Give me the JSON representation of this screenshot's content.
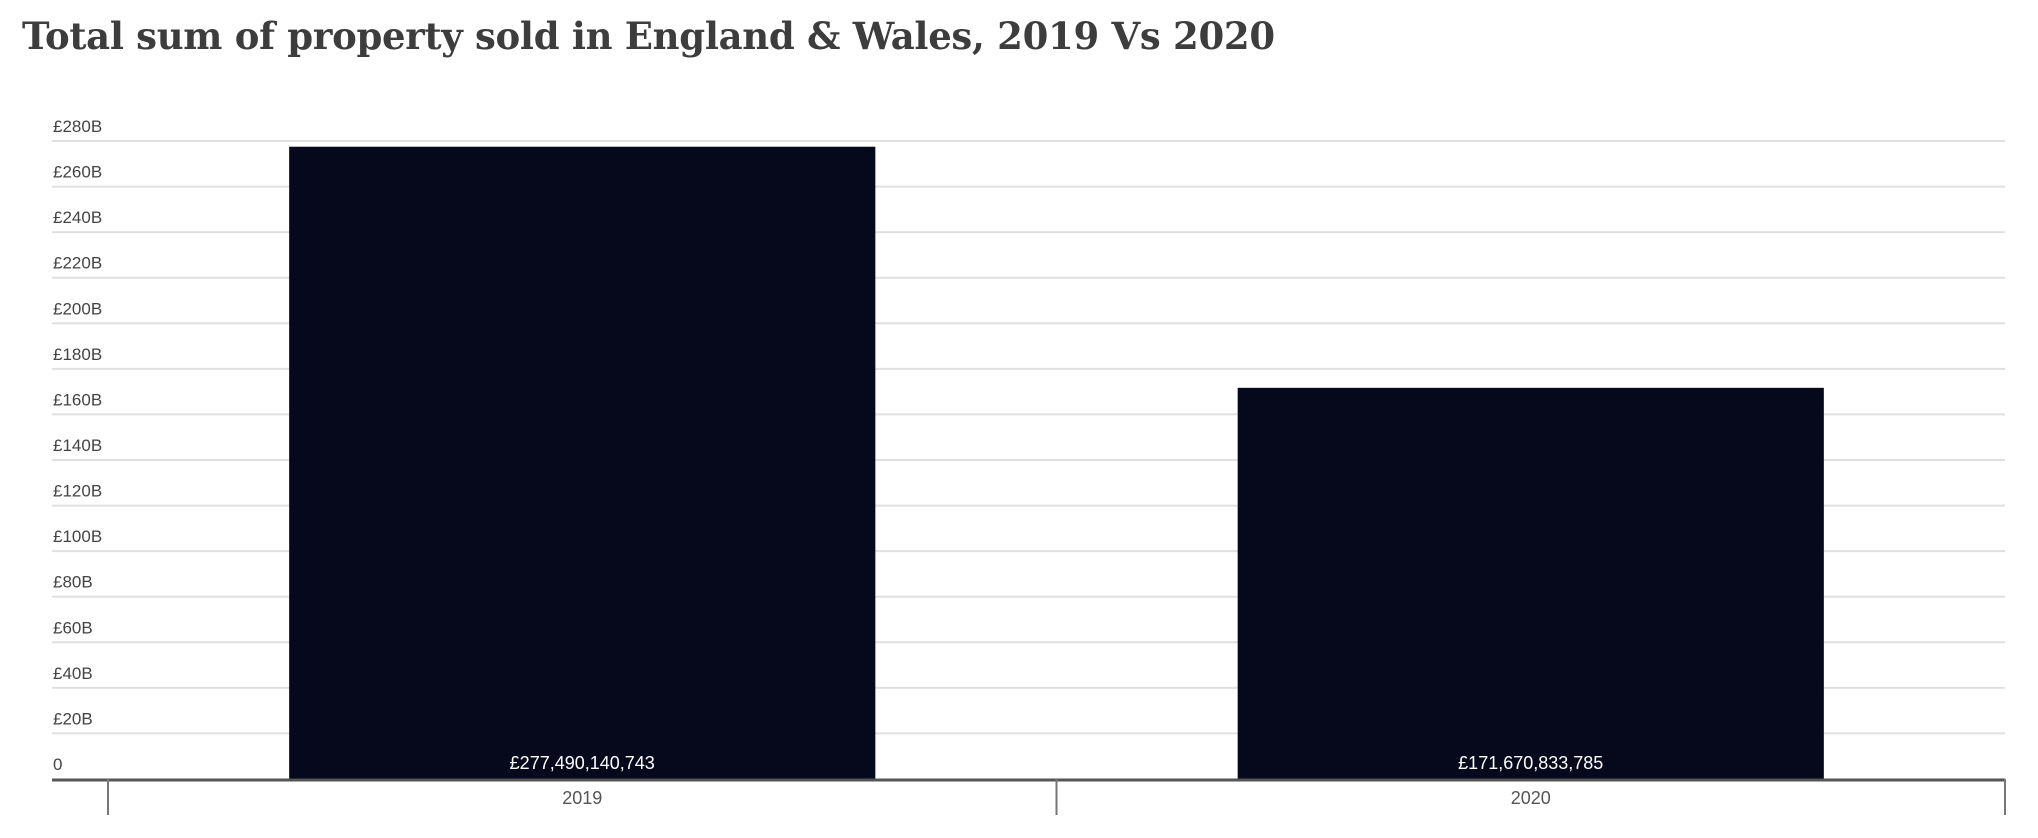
{
  "chart_data": {
    "type": "bar",
    "title": "Total sum of property sold in England & Wales, 2019 Vs 2020",
    "xlabel": "",
    "ylabel": "",
    "categories": [
      "2019",
      "2020"
    ],
    "values": [
      277490140743,
      171670833785
    ],
    "data_labels": [
      "£277,490,140,743",
      "£171,670,833,785"
    ],
    "ylim": [
      0,
      280000000000
    ],
    "yticks": [
      {
        "value": 0,
        "label": "0"
      },
      {
        "value": 20000000000,
        "label": "£20B"
      },
      {
        "value": 40000000000,
        "label": "£40B"
      },
      {
        "value": 60000000000,
        "label": "£60B"
      },
      {
        "value": 80000000000,
        "label": "£80B"
      },
      {
        "value": 100000000000,
        "label": "£100B"
      },
      {
        "value": 120000000000,
        "label": "£120B"
      },
      {
        "value": 140000000000,
        "label": "£140B"
      },
      {
        "value": 160000000000,
        "label": "£160B"
      },
      {
        "value": 180000000000,
        "label": "£180B"
      },
      {
        "value": 200000000000,
        "label": "£200B"
      },
      {
        "value": 220000000000,
        "label": "£220B"
      },
      {
        "value": 240000000000,
        "label": "£240B"
      },
      {
        "value": 260000000000,
        "label": "£260B"
      },
      {
        "value": 280000000000,
        "label": "£280B"
      }
    ],
    "grid": true,
    "legend": "none",
    "colors": {
      "bar": "#06081c",
      "grid": "#e0e0e0",
      "axis": "#555555",
      "title": "#3d3d3d"
    }
  }
}
